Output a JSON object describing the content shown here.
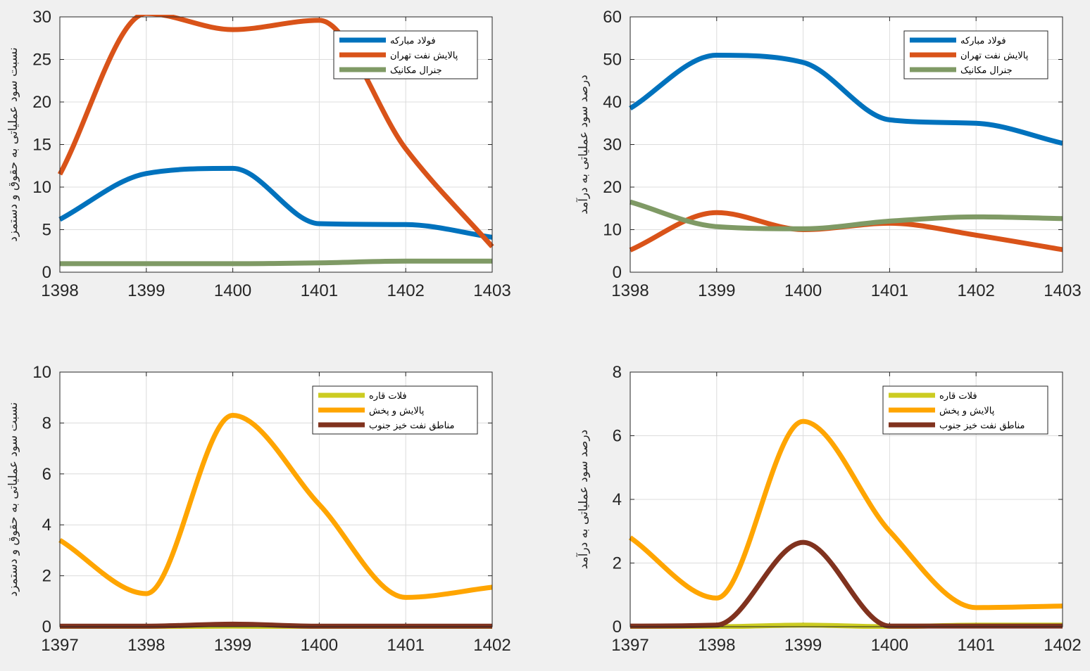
{
  "chart_data": [
    {
      "type": "line",
      "title": "",
      "xlabel": "",
      "ylabel": "نسبت سود عملیاتی به حقوق و دستمزد",
      "x": [
        1398,
        1399,
        1400,
        1401,
        1402,
        1403
      ],
      "xticks": [
        "1398",
        "1399",
        "1400",
        "1401",
        "1402",
        "1403"
      ],
      "xlim": [
        1398,
        1403
      ],
      "ylim": [
        0,
        30
      ],
      "yticks": [
        "0",
        "5",
        "10",
        "15",
        "20",
        "25",
        "30"
      ],
      "grid": true,
      "legend_position": "top-right",
      "series": [
        {
          "name": "فولاد مبارکه",
          "color": "#0072BD",
          "values": [
            6.2,
            11.6,
            12.2,
            5.7,
            5.6,
            4.1
          ]
        },
        {
          "name": "پالایش نفت تهران",
          "color": "#D95319",
          "values": [
            11.5,
            30.4,
            28.5,
            29.6,
            14.5,
            3.0
          ]
        },
        {
          "name": "جنرال مکانیک",
          "color": "#7F9A65",
          "values": [
            1.0,
            1.0,
            1.0,
            1.1,
            1.3,
            1.3
          ]
        }
      ]
    },
    {
      "type": "line",
      "title": "",
      "xlabel": "",
      "ylabel": "درصد سود عملیاتی به درآمد",
      "x": [
        1398,
        1399,
        1400,
        1401,
        1402,
        1403
      ],
      "xticks": [
        "1398",
        "1399",
        "1400",
        "1401",
        "1402",
        "1403"
      ],
      "xlim": [
        1398,
        1403
      ],
      "ylim": [
        0,
        60
      ],
      "yticks": [
        "0",
        "10",
        "20",
        "30",
        "40",
        "50",
        "60"
      ],
      "grid": true,
      "legend_position": "top-right",
      "series": [
        {
          "name": "فولاد مبارکه",
          "color": "#0072BD",
          "values": [
            38.5,
            51.0,
            49.3,
            35.8,
            35.0,
            30.3
          ]
        },
        {
          "name": "پالایش نفت تهران",
          "color": "#D95319",
          "values": [
            5.2,
            14.0,
            10.0,
            11.5,
            8.7,
            5.3
          ]
        },
        {
          "name": "جنرال مکانیک",
          "color": "#7F9A65",
          "values": [
            16.5,
            10.7,
            10.2,
            12.0,
            13.0,
            12.6
          ]
        }
      ]
    },
    {
      "type": "line",
      "title": "",
      "xlabel": "",
      "ylabel": "نسبت سود عملیاتی به حقوق و دستمزد",
      "x": [
        1397,
        1398,
        1399,
        1400,
        1401,
        1402
      ],
      "xticks": [
        "1397",
        "1398",
        "1399",
        "1400",
        "1401",
        "1402"
      ],
      "xlim": [
        1397,
        1402
      ],
      "ylim": [
        0,
        10
      ],
      "yticks": [
        "0",
        "2",
        "4",
        "6",
        "8",
        "10"
      ],
      "grid": true,
      "legend_position": "top-right",
      "series": [
        {
          "name": "فلات قاره",
          "color": "#CCCC22",
          "values": [
            0,
            0,
            0.02,
            0,
            0,
            0
          ]
        },
        {
          "name": "پالایش و پخش",
          "color": "#FFA500",
          "values": [
            3.4,
            1.3,
            8.3,
            4.8,
            1.15,
            1.55
          ]
        },
        {
          "name": "مناطق نفت خیز جنوب",
          "color": "#80321E",
          "values": [
            0.02,
            0.02,
            0.1,
            0.02,
            0.02,
            0.02
          ]
        }
      ]
    },
    {
      "type": "line",
      "title": "",
      "xlabel": "",
      "ylabel": "درصد سود عملیاتی به درآمد",
      "x": [
        1397,
        1398,
        1399,
        1400,
        1401,
        1402
      ],
      "xticks": [
        "1397",
        "1398",
        "1399",
        "1400",
        "1401",
        "1402"
      ],
      "xlim": [
        1397,
        1402
      ],
      "ylim": [
        0,
        8
      ],
      "yticks": [
        "0",
        "2",
        "4",
        "6",
        "8"
      ],
      "grid": true,
      "legend_position": "top-right",
      "series": [
        {
          "name": "فلات قاره",
          "color": "#CCCC22",
          "values": [
            0,
            0,
            0.05,
            0,
            0.05,
            0.05
          ]
        },
        {
          "name": "پالایش و پخش",
          "color": "#FFA500",
          "values": [
            2.8,
            0.9,
            6.45,
            3.0,
            0.6,
            0.65
          ]
        },
        {
          "name": "مناطق نفت خیز جنوب",
          "color": "#80321E",
          "values": [
            0.02,
            0.05,
            2.65,
            0.02,
            0.02,
            0.02
          ]
        }
      ]
    }
  ]
}
